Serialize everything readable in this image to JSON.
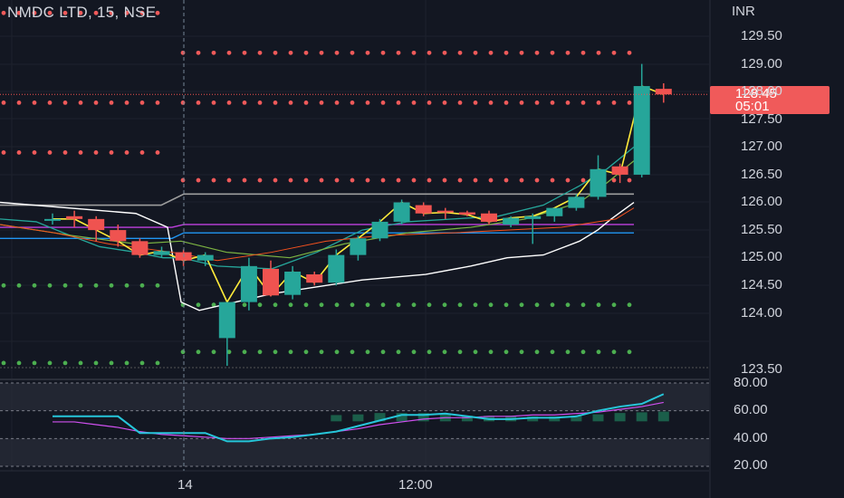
{
  "header": {
    "symbol_title": "NMDC LTD, 15, NSE",
    "currency": "INR"
  },
  "price_badge": {
    "last_price": "128.45",
    "countdown": "05:01"
  },
  "price_axis": {
    "ticks": [
      "129.50",
      "129.00",
      "128.00",
      "127.50",
      "127.00",
      "126.50",
      "126.00",
      "125.50",
      "125.00",
      "124.50",
      "124.00",
      "123.50"
    ],
    "range": [
      123.5,
      129.5
    ]
  },
  "oscillator_axis": {
    "ticks": [
      "80.00",
      "60.00",
      "40.00",
      "20.00"
    ],
    "range": [
      20,
      80
    ],
    "band_upper": 80,
    "band_lower": 20,
    "mid_upper": 60,
    "mid_lower": 40
  },
  "time_axis": {
    "ticks": [
      "14",
      "12:00"
    ]
  },
  "colors": {
    "background": "#131722",
    "grid": "#1e222d",
    "up_candle": "#26a69a",
    "down_candle": "#ef5350",
    "resistance_dots": "#f05a5a",
    "support_dots": "#4caf50",
    "fast_ma": "#ffeb3b",
    "white_line": "#ffffff",
    "purple_line": "#c040e0",
    "blue_line": "#2196f3",
    "osc_line": "#26c6da",
    "osc_signal": "#d050f0"
  },
  "chart_data": {
    "type": "candlestick",
    "interval": "15",
    "candles": [
      {
        "o": 126.2,
        "h": 126.3,
        "l": 126.1,
        "c": 126.2
      },
      {
        "o": 126.25,
        "h": 126.35,
        "l": 126.05,
        "c": 126.2
      },
      {
        "o": 126.2,
        "h": 126.25,
        "l": 125.8,
        "c": 126.0
      },
      {
        "o": 126.0,
        "h": 126.1,
        "l": 125.7,
        "c": 125.8
      },
      {
        "o": 125.8,
        "h": 125.85,
        "l": 125.5,
        "c": 125.55
      },
      {
        "o": 125.55,
        "h": 125.7,
        "l": 125.5,
        "c": 125.62
      },
      {
        "o": 125.6,
        "h": 125.65,
        "l": 125.35,
        "c": 125.45
      },
      {
        "o": 125.45,
        "h": 125.6,
        "l": 125.35,
        "c": 125.55
      },
      {
        "o": 124.05,
        "h": 124.7,
        "l": 123.55,
        "c": 124.7
      },
      {
        "o": 124.7,
        "h": 125.5,
        "l": 124.55,
        "c": 125.35
      },
      {
        "o": 125.3,
        "h": 125.45,
        "l": 124.8,
        "c": 124.82
      },
      {
        "o": 124.83,
        "h": 125.35,
        "l": 124.75,
        "c": 125.25
      },
      {
        "o": 125.2,
        "h": 125.25,
        "l": 125.0,
        "c": 125.05
      },
      {
        "o": 125.05,
        "h": 125.65,
        "l": 125.0,
        "c": 125.55
      },
      {
        "o": 125.55,
        "h": 125.9,
        "l": 125.45,
        "c": 125.85
      },
      {
        "o": 125.85,
        "h": 126.2,
        "l": 125.8,
        "c": 126.15
      },
      {
        "o": 126.15,
        "h": 126.55,
        "l": 126.1,
        "c": 126.5
      },
      {
        "o": 126.45,
        "h": 126.5,
        "l": 126.25,
        "c": 126.3
      },
      {
        "o": 126.35,
        "h": 126.4,
        "l": 126.2,
        "c": 126.32
      },
      {
        "o": 126.32,
        "h": 126.35,
        "l": 126.25,
        "c": 126.28
      },
      {
        "o": 126.3,
        "h": 126.35,
        "l": 126.1,
        "c": 126.15
      },
      {
        "o": 126.1,
        "h": 126.25,
        "l": 126.05,
        "c": 126.22
      },
      {
        "o": 126.2,
        "h": 126.3,
        "l": 125.75,
        "c": 126.25
      },
      {
        "o": 126.25,
        "h": 126.4,
        "l": 126.15,
        "c": 126.4
      },
      {
        "o": 126.4,
        "h": 126.65,
        "l": 126.35,
        "c": 126.6
      },
      {
        "o": 126.6,
        "h": 127.35,
        "l": 126.55,
        "c": 127.1
      },
      {
        "o": 127.15,
        "h": 127.2,
        "l": 126.85,
        "c": 127.0
      },
      {
        "o": 127.0,
        "h": 129.0,
        "l": 126.95,
        "c": 128.6
      },
      {
        "o": 128.55,
        "h": 128.65,
        "l": 128.3,
        "c": 128.45
      }
    ],
    "resistance_levels": [
      129.2,
      128.3,
      127.4,
      126.9
    ],
    "support_levels": [
      125.0,
      124.65,
      123.8,
      123.6
    ],
    "oscillator": [
      56,
      56,
      56,
      56,
      44,
      44,
      44,
      44,
      38,
      38,
      40,
      41,
      43,
      45,
      49,
      53,
      57,
      57,
      58,
      56,
      54,
      54,
      55,
      55,
      56,
      60,
      63,
      65,
      72
    ],
    "oscillator_signal": [
      52,
      52,
      50,
      48,
      45,
      43,
      42,
      41,
      40,
      40,
      41,
      42,
      43,
      45,
      47,
      50,
      52,
      54,
      55,
      55,
      56,
      56,
      57,
      57,
      58,
      59,
      61,
      63,
      66
    ],
    "histogram": [
      0,
      0,
      0,
      0,
      0,
      0,
      0,
      0,
      0,
      0,
      0,
      0,
      0,
      59,
      60,
      62,
      62,
      62,
      61,
      58,
      58,
      58,
      57,
      57,
      58,
      60,
      62,
      63,
      64
    ]
  }
}
